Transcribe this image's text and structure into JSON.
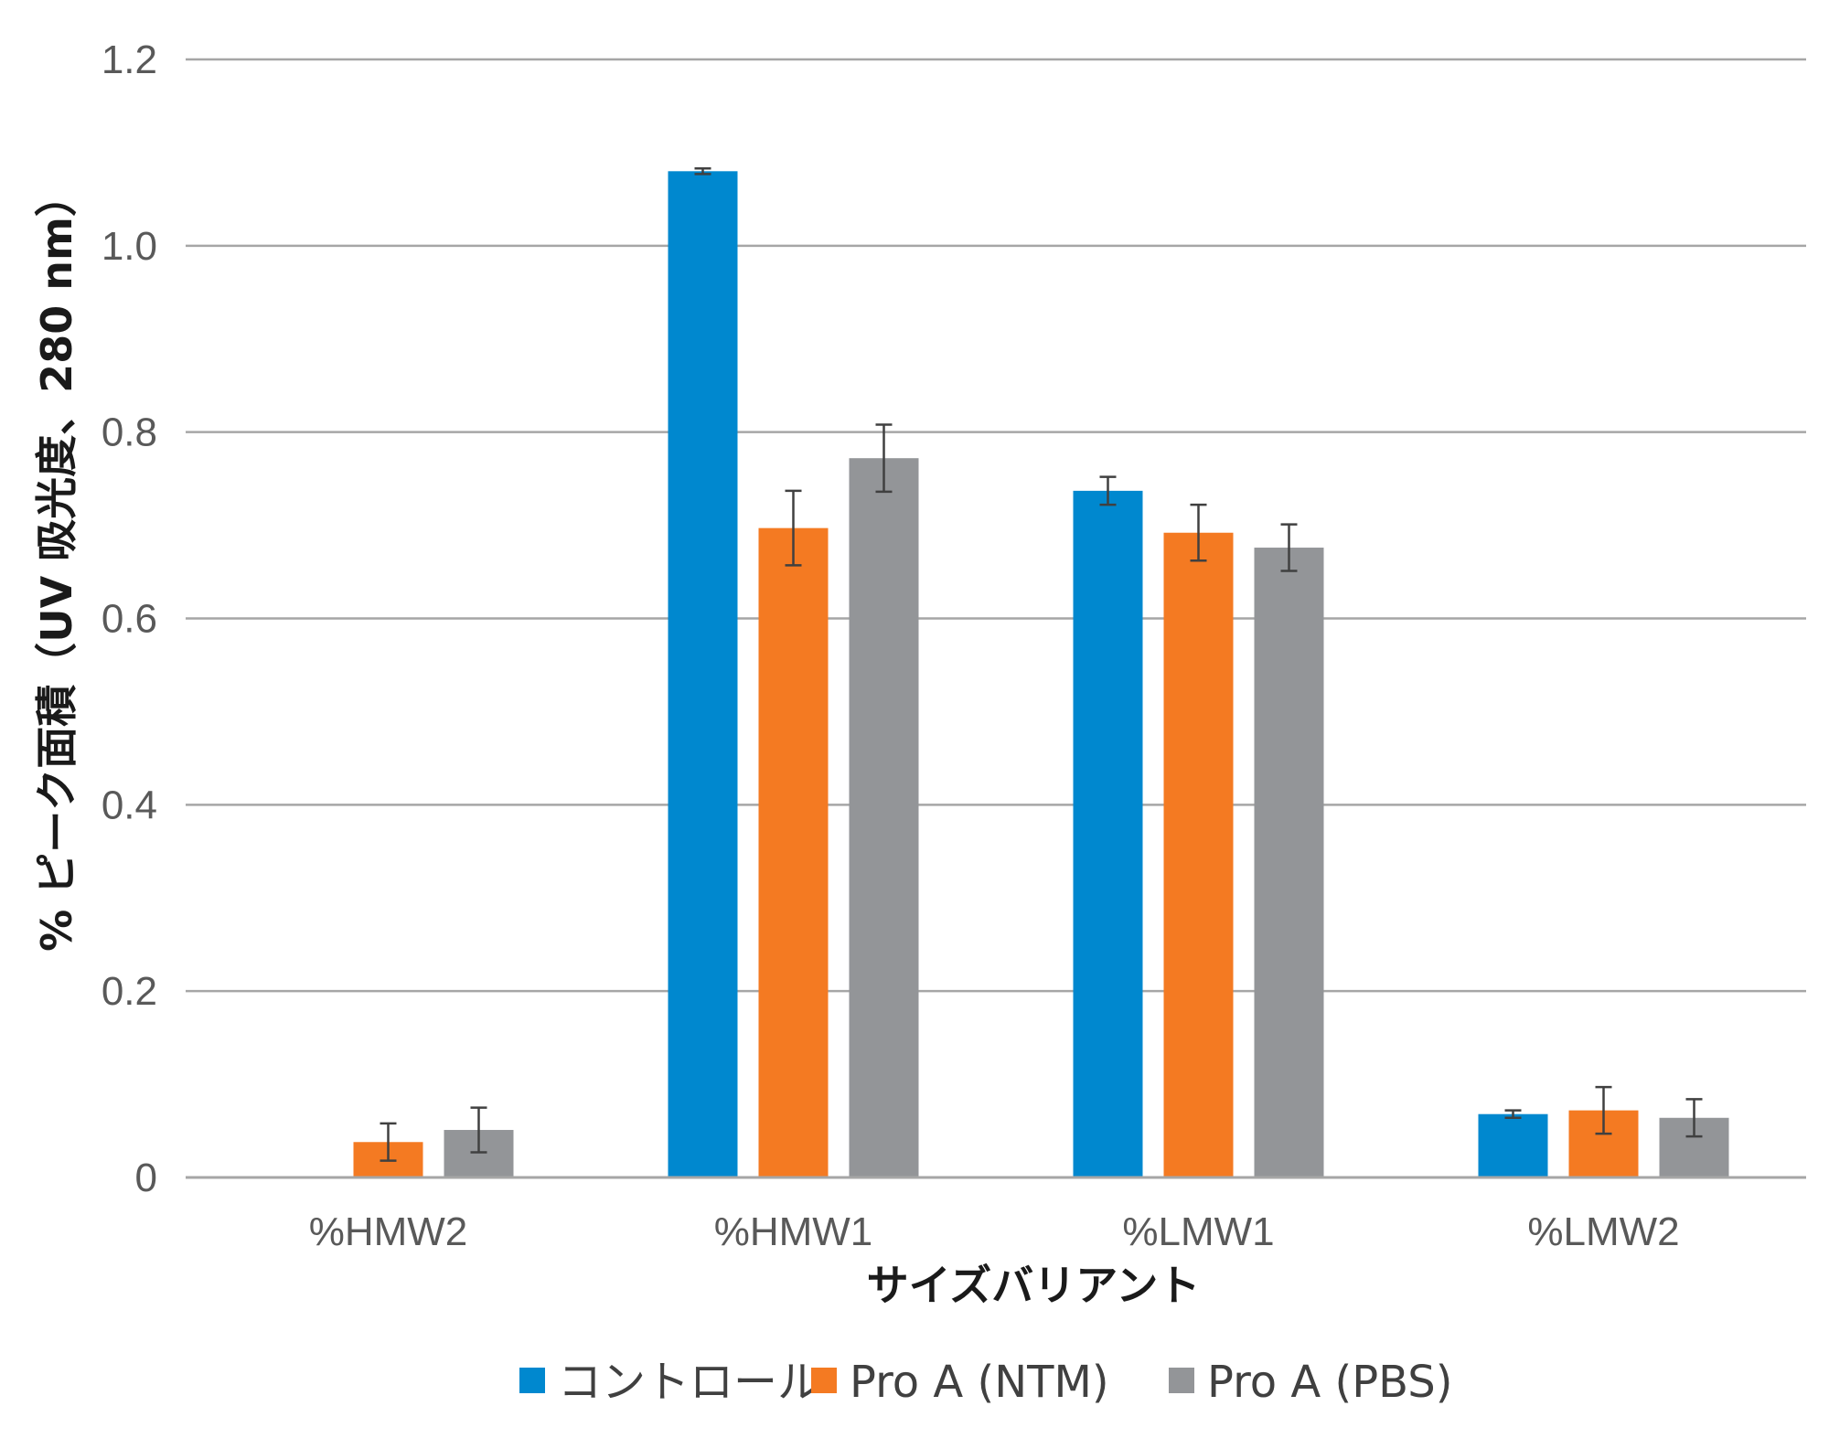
{
  "chart_data": {
    "type": "bar",
    "title": "",
    "xlabel": "サイズバリアント",
    "ylabel": "% ピーク面積（UV 吸光度、280 nm）",
    "ylim": [
      0,
      1.2
    ],
    "yticks": [
      0,
      0.2,
      0.4,
      0.6,
      0.8,
      1.0,
      1.2
    ],
    "ytick_labels": [
      "0",
      "0.2",
      "0.4",
      "0.6",
      "0.8",
      "1.0",
      "1.2"
    ],
    "categories": [
      "%HMW2",
      "%HMW1",
      "%LMW1",
      "%LMW2"
    ],
    "series": [
      {
        "name": "コントロール",
        "color": "#0088cf",
        "values": [
          0,
          1.08,
          0.737,
          0.068
        ],
        "errors": [
          0,
          0.003,
          0.015,
          0.004
        ]
      },
      {
        "name": "Pro A (NTM)",
        "color": "#f47a22",
        "values": [
          0.038,
          0.697,
          0.692,
          0.072
        ],
        "errors": [
          0.02,
          0.04,
          0.03,
          0.025
        ]
      },
      {
        "name": "Pro A (PBS)",
        "color": "#939598",
        "values": [
          0.051,
          0.772,
          0.676,
          0.064
        ],
        "errors": [
          0.024,
          0.036,
          0.025,
          0.02
        ]
      }
    ],
    "grid": true,
    "legend_position": "bottom"
  }
}
